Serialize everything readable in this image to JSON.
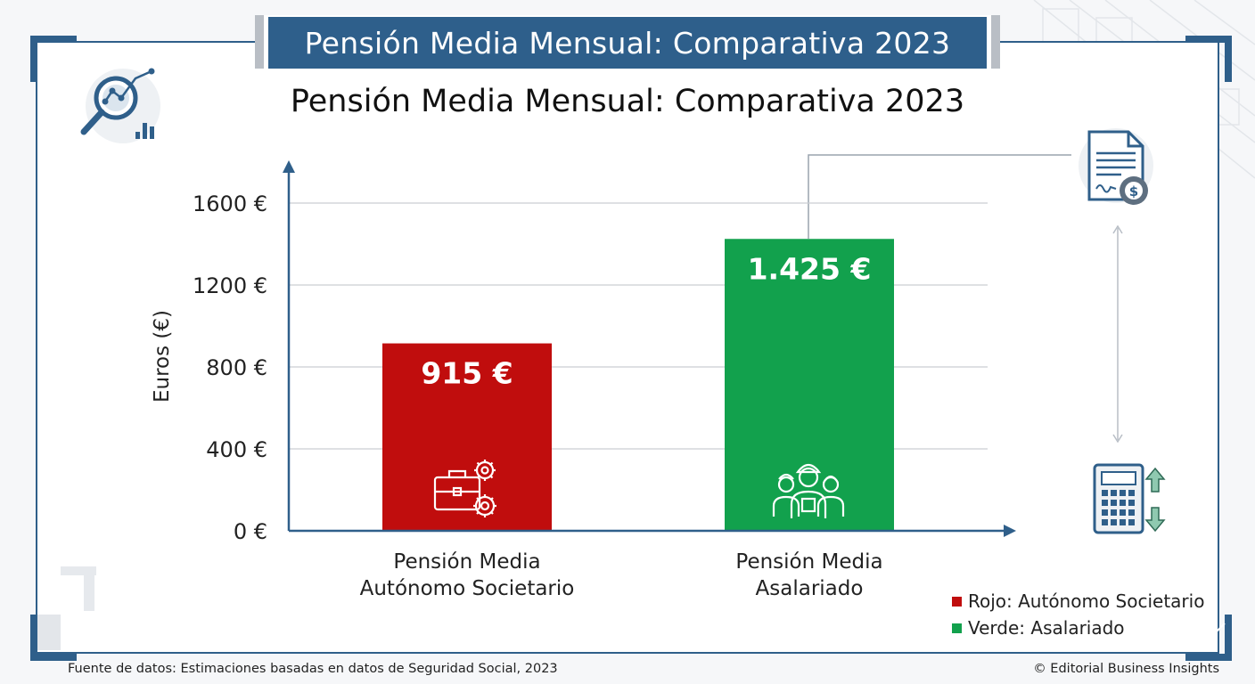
{
  "banner_title": "Pensión Media Mensual: Comparativa 2023",
  "chart_data": {
    "type": "bar",
    "title": "Pensión Media Mensual: Comparativa 2023",
    "ylabel": "Euros (€)",
    "xlabel": "",
    "ylim": [
      0,
      1600
    ],
    "yticks": [
      "0 €",
      "400 €",
      "800 €",
      "1200 €",
      "1600 €"
    ],
    "ytick_values": [
      0,
      400,
      800,
      1200,
      1600
    ],
    "grid": true,
    "categories": [
      [
        "Pensión Media",
        "Autónomo Societario"
      ],
      [
        "Pensión Media",
        "Asalariado"
      ]
    ],
    "values": [
      915,
      1425
    ],
    "data_labels": [
      "915 €",
      "1.425 €"
    ],
    "colors": [
      "#c00d0d",
      "#12a14d"
    ],
    "legend": {
      "placement": "bottom-right",
      "items": [
        {
          "label": "Rojo: Autónomo Societario",
          "color": "#c00d0d"
        },
        {
          "label": "Verde: Asalariado",
          "color": "#12a14d"
        }
      ]
    }
  },
  "icons": {
    "analytics": "magnifier-chart-icon",
    "document": "document-cost-icon",
    "calculator": "calculator-icon",
    "bar1": "briefcase-gears-icon",
    "bar2": "workers-group-icon"
  },
  "footer": {
    "source": "Fuente de datos: Estimaciones basadas en datos de Seguridad Social, 2023",
    "credit": "© Editorial Business Insights"
  }
}
